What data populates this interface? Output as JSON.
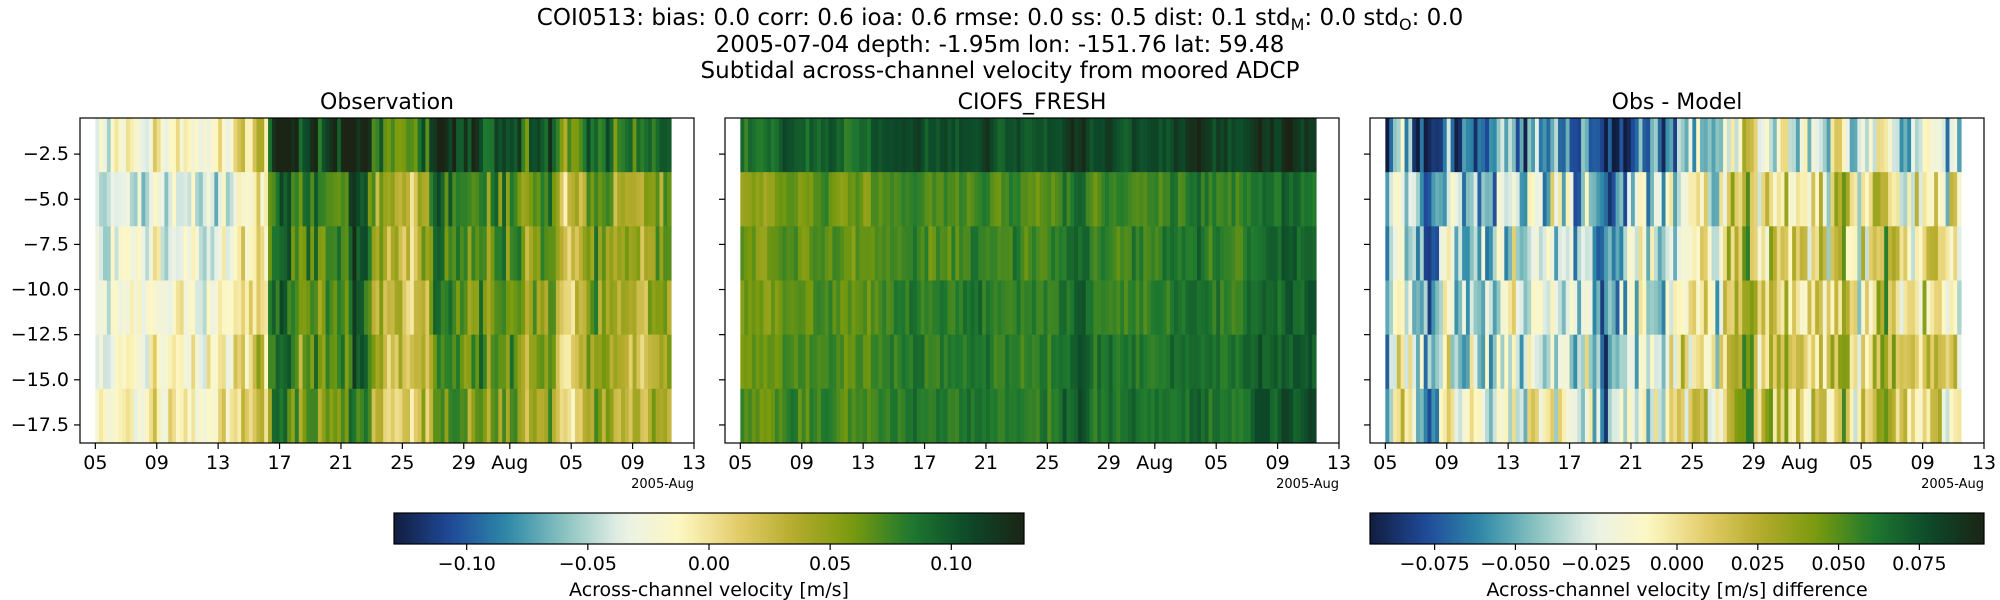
{
  "suptitle": {
    "line1": "COI0513: bias: 0.0  corr: 0.6  ioa: 0.6  rmse: 0.0  ss: 0.5  dist: 0.1  std",
    "line1_sub_m": "M",
    "line1_mid": ": 0.0  std",
    "line1_sub_o": "O",
    "line1_end": ": 0.0",
    "line2": "2005-07-04 depth: -1.95m lon: -151.76 lat: 59.48",
    "line3": "Subtidal across-channel velocity from moored ADCP"
  },
  "chart_data": [
    {
      "type": "heatmap",
      "title": "Observation",
      "ylabel": "",
      "x_ticks": [
        "05",
        "09",
        "13",
        "17",
        "21",
        "25",
        "29",
        "Aug",
        "05",
        "09",
        "13"
      ],
      "x_offset_label": "2005-Aug",
      "x_range": [
        "2005-07-04",
        "2005-08-13"
      ],
      "y_ticks": [
        -2.5,
        -5.0,
        -7.5,
        -10.0,
        -12.5,
        -15.0,
        -17.5
      ],
      "y_ticks_text": [
        "−2.5",
        "−5.0",
        "−7.5",
        "−10.0",
        "−12.5",
        "−15.0",
        "−17.5"
      ],
      "ylim": [
        -18.5,
        -0.5
      ],
      "depth_bins": [
        -2.0,
        -5.0,
        -8.0,
        -11.0,
        -14.0,
        -17.0
      ],
      "vmin": -0.13,
      "vmax": 0.13,
      "colormap": "delta (blue–white–yellow–green)",
      "seed": 11
    },
    {
      "type": "heatmap",
      "title": "CIOFS_FRESH",
      "x_ticks": [
        "05",
        "09",
        "13",
        "17",
        "21",
        "25",
        "29",
        "Aug",
        "05",
        "09",
        "13"
      ],
      "x_offset_label": "2005-Aug",
      "x_range": [
        "2005-07-04",
        "2005-08-13"
      ],
      "ylim": [
        -18.5,
        -0.5
      ],
      "depth_bins": [
        -2.0,
        -5.0,
        -8.0,
        -11.0,
        -14.0,
        -17.0
      ],
      "vmin": -0.13,
      "vmax": 0.13,
      "colormap": "delta",
      "seed": 23
    },
    {
      "type": "heatmap",
      "title": "Obs - Model",
      "x_ticks": [
        "05",
        "09",
        "13",
        "17",
        "21",
        "25",
        "29",
        "Aug",
        "05",
        "09",
        "13"
      ],
      "x_offset_label": "2005-Aug",
      "x_range": [
        "2005-07-04",
        "2005-08-13"
      ],
      "ylim": [
        -18.5,
        -0.5
      ],
      "depth_bins": [
        -2.0,
        -5.0,
        -8.0,
        -11.0,
        -14.0,
        -17.0
      ],
      "vmin": -0.095,
      "vmax": 0.095,
      "colormap": "delta",
      "seed": 37
    }
  ],
  "colorbars": [
    {
      "label": "Across-channel velocity [m/s]",
      "vmin": -0.13,
      "vmax": 0.13,
      "ticks": [
        -0.1,
        -0.05,
        0.0,
        0.05,
        0.1
      ],
      "tick_labels": [
        "−0.10",
        "−0.05",
        "0.00",
        "0.05",
        "0.10"
      ]
    },
    {
      "label": "Across-channel velocity [m/s] difference",
      "vmin": -0.095,
      "vmax": 0.095,
      "ticks": [
        -0.075,
        -0.05,
        -0.025,
        0.0,
        0.025,
        0.05,
        0.075
      ],
      "tick_labels": [
        "−0.075",
        "−0.050",
        "−0.025",
        "0.000",
        "0.025",
        "0.050",
        "0.075"
      ]
    }
  ],
  "colors": {
    "delta_stops": [
      "#111d3f",
      "#1f4a9a",
      "#2f8aa8",
      "#8cc4c1",
      "#eaf2e8",
      "#fdf7c2",
      "#e3cd6a",
      "#b4ab2c",
      "#7a9a0e",
      "#1f7a2f",
      "#0d4a2a",
      "#1b2415"
    ]
  }
}
